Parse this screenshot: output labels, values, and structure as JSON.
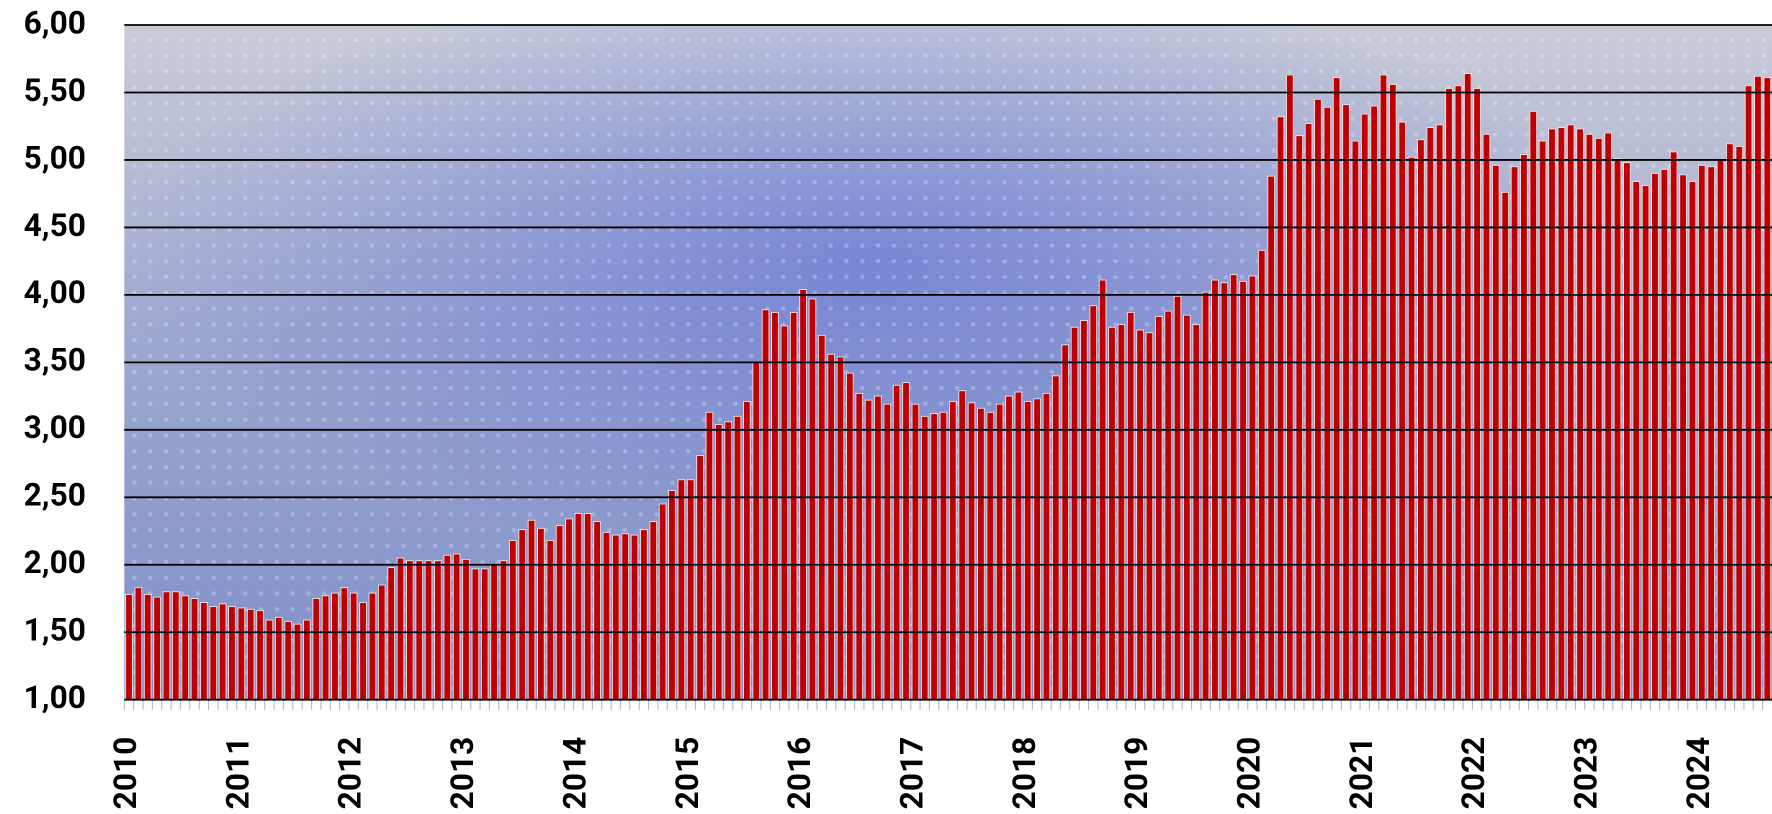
{
  "chart_data": {
    "type": "bar",
    "color": "#c00000",
    "grid": true,
    "ylim": [
      1,
      6
    ],
    "yticks": [
      {
        "value": 1,
        "label": "1,00"
      },
      {
        "value": 1.5,
        "label": "1,50"
      },
      {
        "value": 2,
        "label": "2,00"
      },
      {
        "value": 2.5,
        "label": "2,50"
      },
      {
        "value": 3,
        "label": "3,00"
      },
      {
        "value": 3.5,
        "label": "3,50"
      },
      {
        "value": 4,
        "label": "4,00"
      },
      {
        "value": 4.5,
        "label": "4,50"
      },
      {
        "value": 5,
        "label": "5,00"
      },
      {
        "value": 5.5,
        "label": "5,50"
      },
      {
        "value": 6,
        "label": "6,00"
      }
    ],
    "categories": [
      "2010",
      null,
      null,
      null,
      null,
      null,
      null,
      null,
      null,
      null,
      null,
      null,
      "2011",
      null,
      null,
      null,
      null,
      null,
      null,
      null,
      null,
      null,
      null,
      null,
      "2012",
      null,
      null,
      null,
      null,
      null,
      null,
      null,
      null,
      null,
      null,
      null,
      "2013",
      null,
      null,
      null,
      null,
      null,
      null,
      null,
      null,
      null,
      null,
      null,
      "2014",
      null,
      null,
      null,
      null,
      null,
      null,
      null,
      null,
      null,
      null,
      null,
      "2015",
      null,
      null,
      null,
      null,
      null,
      null,
      null,
      null,
      null,
      null,
      null,
      "2016",
      null,
      null,
      null,
      null,
      null,
      null,
      null,
      null,
      null,
      null,
      null,
      "2017",
      null,
      null,
      null,
      null,
      null,
      null,
      null,
      null,
      null,
      null,
      null,
      "2018",
      null,
      null,
      null,
      null,
      null,
      null,
      null,
      null,
      null,
      null,
      null,
      "2019",
      null,
      null,
      null,
      null,
      null,
      null,
      null,
      null,
      null,
      null,
      null,
      "2020",
      null,
      null,
      null,
      null,
      null,
      null,
      null,
      null,
      null,
      null,
      null,
      "2021",
      null,
      null,
      null,
      null,
      null,
      null,
      null,
      null,
      null,
      null,
      null,
      "2022",
      null,
      null,
      null,
      null,
      null,
      null,
      null,
      null,
      null,
      null,
      null,
      "2023",
      null,
      null,
      null,
      null,
      null,
      null,
      null,
      null,
      null,
      null,
      null,
      "2024",
      null,
      null,
      null,
      null,
      null,
      null,
      null
    ],
    "values": [
      1.78,
      1.83,
      1.78,
      1.76,
      1.8,
      1.8,
      1.77,
      1.75,
      1.72,
      1.69,
      1.71,
      1.69,
      1.68,
      1.67,
      1.66,
      1.59,
      1.61,
      1.58,
      1.56,
      1.59,
      1.75,
      1.77,
      1.79,
      1.83,
      1.79,
      1.72,
      1.79,
      1.85,
      1.98,
      2.05,
      2.03,
      2.03,
      2.03,
      2.03,
      2.07,
      2.08,
      2.04,
      1.97,
      1.97,
      2.0,
      2.03,
      2.18,
      2.26,
      2.33,
      2.27,
      2.18,
      2.29,
      2.34,
      2.38,
      2.38,
      2.32,
      2.24,
      2.22,
      2.23,
      2.22,
      2.26,
      2.32,
      2.45,
      2.55,
      2.63,
      2.63,
      2.81,
      3.13,
      3.04,
      3.06,
      3.1,
      3.21,
      3.5,
      3.89,
      3.87,
      3.77,
      3.87,
      4.04,
      3.97,
      3.7,
      3.56,
      3.54,
      3.42,
      3.27,
      3.22,
      3.25,
      3.19,
      3.33,
      3.35,
      3.19,
      3.1,
      3.12,
      3.13,
      3.21,
      3.29,
      3.2,
      3.16,
      3.13,
      3.19,
      3.25,
      3.28,
      3.21,
      3.23,
      3.27,
      3.4,
      3.63,
      3.76,
      3.81,
      3.92,
      4.11,
      3.76,
      3.78,
      3.87,
      3.74,
      3.72,
      3.84,
      3.88,
      3.99,
      3.85,
      3.78,
      4.02,
      4.11,
      4.09,
      4.15,
      4.1,
      4.14,
      4.33,
      4.88,
      5.32,
      5.63,
      5.18,
      5.27,
      5.45,
      5.39,
      5.61,
      5.41,
      5.14,
      5.34,
      5.4,
      5.63,
      5.56,
      5.28,
      5.02,
      5.15,
      5.24,
      5.26,
      5.53,
      5.55,
      5.64,
      5.53,
      5.19,
      4.96,
      4.76,
      4.95,
      5.04,
      5.36,
      5.14,
      5.23,
      5.24,
      5.26,
      5.23,
      5.19,
      5.16,
      5.2,
      5.01,
      4.98,
      4.84,
      4.81,
      4.9,
      4.93,
      5.06,
      4.89,
      4.84,
      4.96,
      4.95,
      5.0,
      5.12,
      5.1,
      5.55,
      5.62,
      5.61
    ]
  }
}
